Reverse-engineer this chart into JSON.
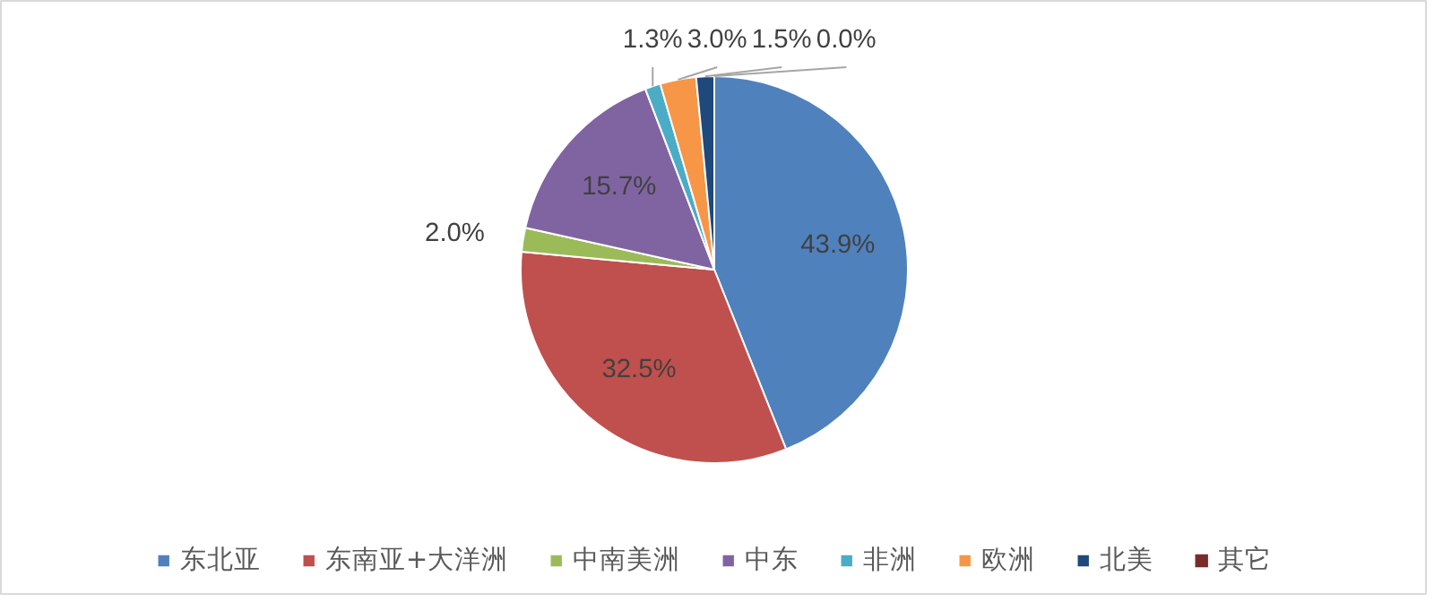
{
  "chart_data": {
    "type": "pie",
    "categories": [
      "东北亚",
      "东南亚+大洋洲",
      "中南美洲",
      "中东",
      "非洲",
      "欧洲",
      "北美",
      "其它"
    ],
    "values": [
      43.9,
      32.5,
      2.0,
      15.7,
      1.3,
      3.0,
      1.5,
      0.0
    ],
    "colors": [
      "#4f81bd",
      "#c0504d",
      "#9bbb59",
      "#8064a2",
      "#4bacc6",
      "#f79646",
      "#1f497d",
      "#772c2a"
    ],
    "value_labels": [
      "43.9%",
      "32.5%",
      "2.0%",
      "15.7%",
      "1.3%",
      "3.0%",
      "1.5%",
      "0.0%"
    ],
    "legend": "bottom"
  }
}
